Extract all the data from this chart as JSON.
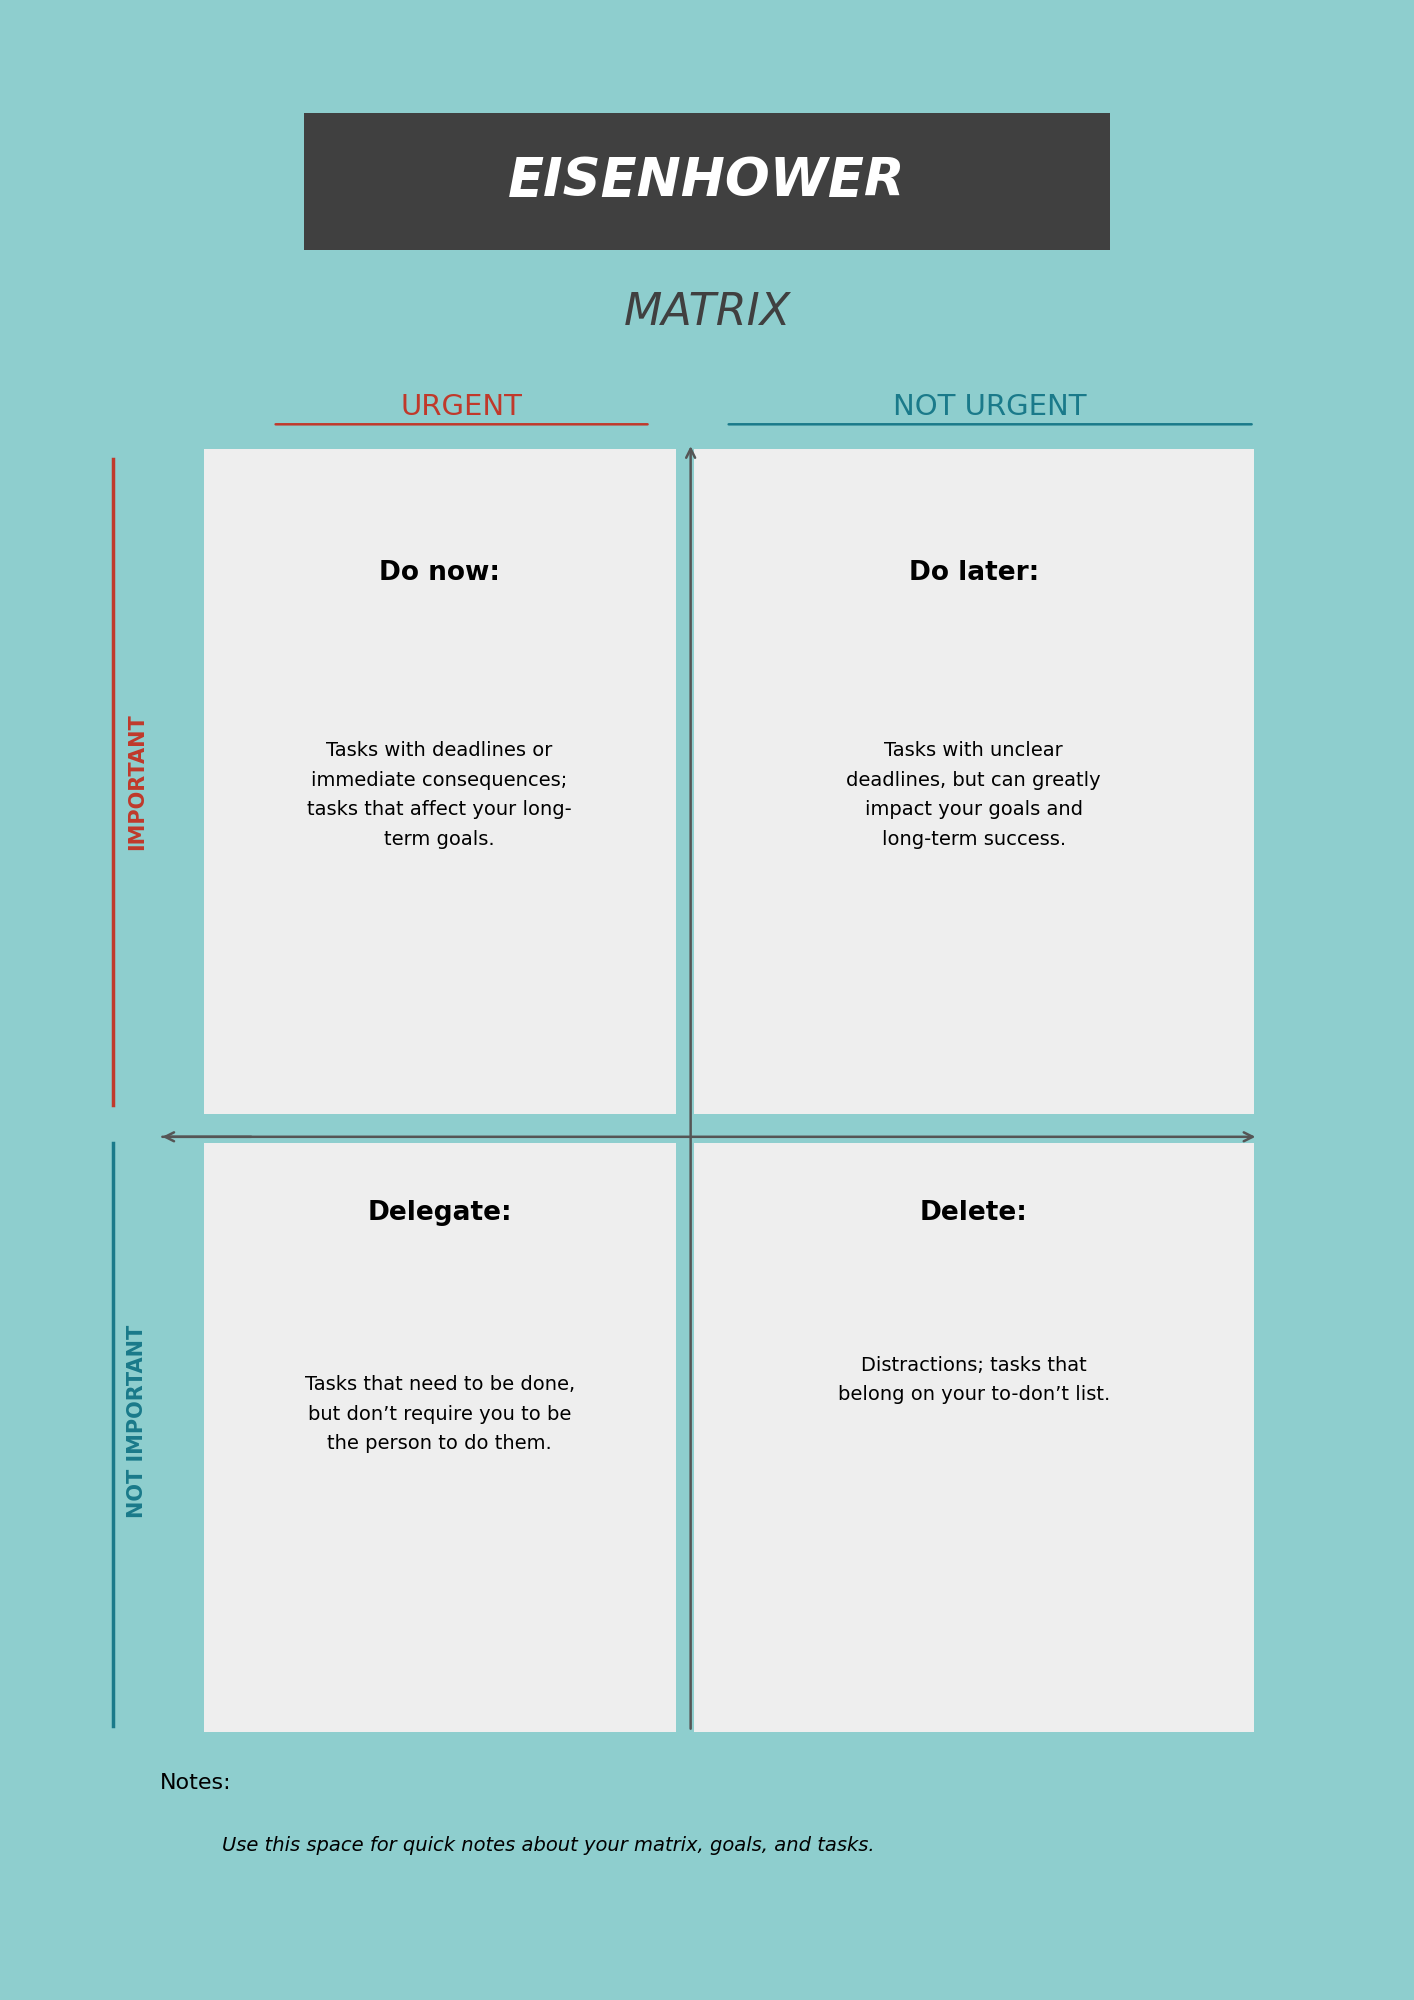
{
  "background_color": "#8ecece",
  "inner_bg": "#ffffff",
  "title_box_color": "#404040",
  "title_text": "EISENHOWER",
  "subtitle_text": "MATRIX",
  "urgent_color": "#c0392b",
  "not_urgent_color": "#1a7a8a",
  "important_color": "#c0392b",
  "not_important_color": "#1a7a8a",
  "quadrant_bg": "#eeeeee",
  "axis_color": "#555555",
  "q1_title": "Do now:",
  "q1_body": "Tasks with deadlines or\nimmediate consequences;\ntasks that affect your long-\nterm goals.",
  "q2_title": "Do later:",
  "q2_body": "Tasks with unclear\ndeadlines, but can greatly\nimpact your goals and\nlong-term success.",
  "q3_title": "Delegate:",
  "q3_body": "Tasks that need to be done,\nbut don’t require you to be\nthe person to do them.",
  "q4_title": "Delete:",
  "q4_body": "Distractions; tasks that\nbelong on your to-don’t list.",
  "notes_label": "Notes:",
  "notes_body": "Use this space for quick notes about your matrix, goals, and tasks."
}
